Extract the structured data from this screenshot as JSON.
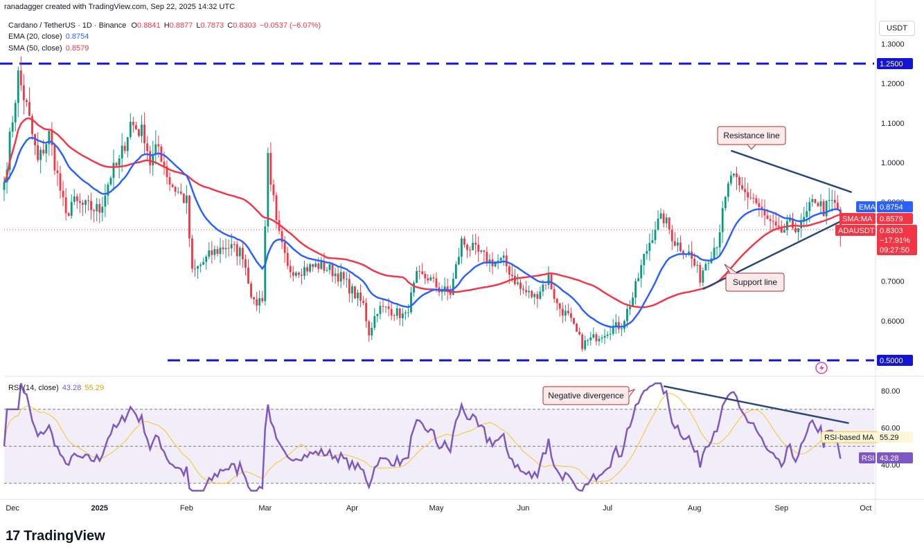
{
  "header": {
    "credit": "ranadagger created with TradingView.com, Sep 22, 2025 14:32 UTC",
    "symbol": "Cardano / TetherUS · 1D · Binance",
    "ohlc": {
      "o_label": "O",
      "o": "0.8841",
      "h_label": "H",
      "h": "0.8877",
      "l_label": "L",
      "l": "0.7873",
      "c_label": "C",
      "c": "0.8303",
      "change": "−0.0537 (−6.07%)"
    },
    "ema_label": "EMA (20, close)",
    "ema_value": "0.8754",
    "sma_label": "SMA (50, close)",
    "sma_value": "0.8579",
    "rsi_label": "RSI (14, close)",
    "rsi_value": "43.28",
    "rsi_ma_value": "55.29"
  },
  "price_axis": {
    "unit": "USDT",
    "ticks": [
      "1.3000",
      "1.2000",
      "1.1000",
      "1.0000",
      "0.9000",
      "0.7000",
      "0.6000"
    ],
    "tick_values": [
      1.3,
      1.2,
      1.1,
      1.0,
      0.9,
      0.7,
      0.6
    ],
    "markers": {
      "upper_level": "1.2500",
      "lower_level": "0.5000",
      "ema_tag": "EMA",
      "ema": "0.8754",
      "sma_tag": "SMA:MA",
      "sma": "0.8579",
      "symbol_tag": "ADAUSDT",
      "price": "0.8303",
      "pct": "−17.91%",
      "countdown": "09:27:50"
    }
  },
  "rsi_axis": {
    "ticks": [
      "80.00",
      "60.00",
      "40.00"
    ],
    "tick_values": [
      80,
      60,
      40
    ],
    "markers": {
      "ma_tag": "RSI-based MA",
      "ma": "55.29",
      "rsi_tag": "RSI",
      "rsi": "43.28"
    }
  },
  "time_axis": [
    "Dec",
    "2025",
    "Feb",
    "Mar",
    "Apr",
    "May",
    "Jun",
    "Jul",
    "Aug",
    "Sep",
    "Oct"
  ],
  "annotations": {
    "resistance": "Resistance line",
    "support": "Support line",
    "divergence": "Negative divergence"
  },
  "footer": {
    "brand": "TradingView",
    "mark": "17"
  },
  "colors": {
    "up": "#089981",
    "down": "#f23645",
    "ema": "#2962ff",
    "sma": "#f23645",
    "rsi": "#7e57c2",
    "rsi_ma": "#f7c325",
    "level": "#1414d4",
    "trend": "#29477a",
    "annotation_border": "#b22833",
    "annotation_fill": "#fbeaea"
  },
  "chart_data": {
    "type": "candlestick",
    "symbol": "ADAUSDT",
    "timeframe": "1D",
    "price_range": [
      0.46,
      1.34
    ],
    "rsi_range": [
      25,
      85
    ],
    "horizontal_levels": [
      1.25,
      0.5
    ],
    "rsi_bands": [
      70,
      50,
      30
    ],
    "anchors": [
      [
        "2024-11-28",
        0.95
      ],
      [
        "2024-12-03",
        1.22
      ],
      [
        "2024-12-06",
        1.14
      ],
      [
        "2024-12-10",
        1.0
      ],
      [
        "2024-12-14",
        1.07
      ],
      [
        "2024-12-20",
        0.86
      ],
      [
        "2024-12-22",
        0.9
      ],
      [
        "2024-12-26",
        0.89
      ],
      [
        "2025-01-01",
        0.88
      ],
      [
        "2025-01-05",
        0.97
      ],
      [
        "2025-01-08",
        1.0
      ],
      [
        "2025-01-12",
        1.1
      ],
      [
        "2025-01-17",
        1.07
      ],
      [
        "2025-01-19",
        1.0
      ],
      [
        "2025-01-22",
        1.04
      ],
      [
        "2025-01-26",
        0.95
      ],
      [
        "2025-02-01",
        0.9
      ],
      [
        "2025-02-03",
        0.72
      ],
      [
        "2025-02-10",
        0.77
      ],
      [
        "2025-02-15",
        0.79
      ],
      [
        "2025-02-21",
        0.77
      ],
      [
        "2025-02-25",
        0.64
      ],
      [
        "2025-02-28",
        0.66
      ],
      [
        "2025-03-02",
        1.02
      ],
      [
        "2025-03-05",
        0.84
      ],
      [
        "2025-03-09",
        0.73
      ],
      [
        "2025-03-14",
        0.73
      ],
      [
        "2025-03-20",
        0.74
      ],
      [
        "2025-03-24",
        0.73
      ],
      [
        "2025-03-28",
        0.71
      ],
      [
        "2025-04-05",
        0.64
      ],
      [
        "2025-04-07",
        0.57
      ],
      [
        "2025-04-10",
        0.63
      ],
      [
        "2025-04-14",
        0.63
      ],
      [
        "2025-04-20",
        0.61
      ],
      [
        "2025-04-24",
        0.71
      ],
      [
        "2025-04-28",
        0.71
      ],
      [
        "2025-05-02",
        0.68
      ],
      [
        "2025-05-06",
        0.67
      ],
      [
        "2025-05-10",
        0.8
      ],
      [
        "2025-05-14",
        0.78
      ],
      [
        "2025-05-20",
        0.75
      ],
      [
        "2025-05-25",
        0.75
      ],
      [
        "2025-05-31",
        0.68
      ],
      [
        "2025-06-05",
        0.66
      ],
      [
        "2025-06-10",
        0.71
      ],
      [
        "2025-06-13",
        0.64
      ],
      [
        "2025-06-17",
        0.61
      ],
      [
        "2025-06-22",
        0.54
      ],
      [
        "2025-06-27",
        0.56
      ],
      [
        "2025-07-02",
        0.58
      ],
      [
        "2025-07-06",
        0.59
      ],
      [
        "2025-07-10",
        0.66
      ],
      [
        "2025-07-14",
        0.76
      ],
      [
        "2025-07-18",
        0.84
      ],
      [
        "2025-07-21",
        0.86
      ],
      [
        "2025-07-25",
        0.8
      ],
      [
        "2025-07-30",
        0.77
      ],
      [
        "2025-08-03",
        0.71
      ],
      [
        "2025-08-05",
        0.75
      ],
      [
        "2025-08-09",
        0.8
      ],
      [
        "2025-08-14",
        0.97
      ],
      [
        "2025-08-17",
        0.93
      ],
      [
        "2025-08-22",
        0.91
      ],
      [
        "2025-08-26",
        0.86
      ],
      [
        "2025-08-31",
        0.82
      ],
      [
        "2025-09-04",
        0.84
      ],
      [
        "2025-09-08",
        0.84
      ],
      [
        "2025-09-13",
        0.91
      ],
      [
        "2025-09-16",
        0.88
      ],
      [
        "2025-09-19",
        0.9
      ],
      [
        "2025-09-21",
        0.88
      ],
      [
        "2025-09-22",
        0.83
      ]
    ],
    "ema20_final": 0.8754,
    "sma50_final": 0.8579,
    "rsi_final": 43.28,
    "rsi_ma_final": 55.29,
    "trendlines": [
      {
        "name": "Resistance line",
        "from": [
          "2025-08-14",
          1.03
        ],
        "to": [
          "2025-09-26",
          0.925
        ]
      },
      {
        "name": "Support line",
        "from": [
          "2025-08-04",
          0.68
        ],
        "to": [
          "2025-09-26",
          0.865
        ]
      },
      {
        "name": "Negative divergence",
        "pane": "rsi",
        "from": [
          "2025-07-21",
          82.5
        ],
        "to": [
          "2025-09-25",
          62.5
        ]
      }
    ]
  }
}
